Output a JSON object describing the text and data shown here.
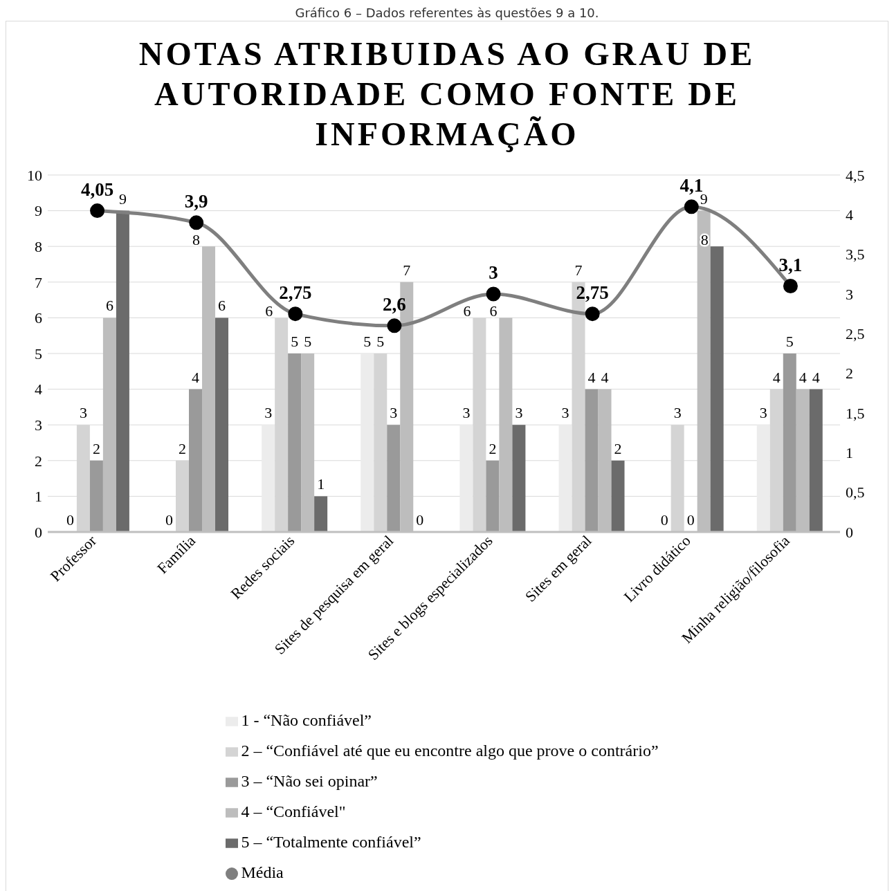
{
  "chart_data": {
    "type": "bar",
    "title": "NOTAS ATRIBUIDAS AO GRAU DE AUTORIDADE COMO FONTE DE INFORMAÇÃO",
    "annotations": [
      "Gráfico 6 – Dados referentes às questões 9 a 10."
    ],
    "categories": [
      "Professor",
      "Família",
      "Redes sociais",
      "Sites de pesquisa em geral",
      "Sites e blogs especializados",
      "Sites em geral",
      "Livro didático",
      "Minha religião/filosofia"
    ],
    "series": [
      {
        "name": "1 - “Não confiável”",
        "color": "#ececec",
        "values": [
          0,
          0,
          3,
          5,
          3,
          3,
          0,
          3
        ]
      },
      {
        "name": "2 – “Confiável até que eu encontre algo que prove o contrário”",
        "color": "#d4d4d4",
        "values": [
          3,
          2,
          6,
          5,
          6,
          7,
          3,
          4
        ]
      },
      {
        "name": "3 – “Não sei opinar”",
        "color": "#9a9a9a",
        "values": [
          2,
          4,
          5,
          3,
          2,
          4,
          0,
          5
        ]
      },
      {
        "name": "4 – “Confiável\"",
        "color": "#bdbdbd",
        "values": [
          6,
          8,
          5,
          7,
          6,
          4,
          9,
          4
        ]
      },
      {
        "name": "5 – “Totalmente confiável”",
        "color": "#6b6b6b",
        "values": [
          9,
          6,
          1,
          0,
          3,
          2,
          8,
          4
        ]
      },
      {
        "name": "Média",
        "type": "line",
        "axis": "y2",
        "color": "#7f7f7f",
        "marker": "circle",
        "values": [
          4.05,
          3.9,
          2.75,
          2.6,
          3,
          2.75,
          4.1,
          3.1
        ],
        "value_labels": [
          "4,05",
          "3,9",
          "2,75",
          "2,6",
          "3",
          "2,75",
          "4,1",
          "3,1"
        ]
      }
    ],
    "ylim": [
      0,
      10
    ],
    "yticks": [
      0,
      1,
      2,
      3,
      4,
      5,
      6,
      7,
      8,
      9,
      10
    ],
    "y2lim": [
      0,
      4.5
    ],
    "y2ticks": [
      0,
      {
        "value": 0.5,
        "label": "0,5"
      },
      1,
      {
        "value": 1.5,
        "label": "1,5"
      },
      2,
      {
        "value": 2.5,
        "label": "2,5"
      },
      3,
      {
        "value": 3.5,
        "label": "3,5"
      },
      4,
      {
        "value": 4.5,
        "label": "4,5"
      }
    ],
    "grid": "y",
    "legend": "bottom",
    "data_labels": true
  }
}
